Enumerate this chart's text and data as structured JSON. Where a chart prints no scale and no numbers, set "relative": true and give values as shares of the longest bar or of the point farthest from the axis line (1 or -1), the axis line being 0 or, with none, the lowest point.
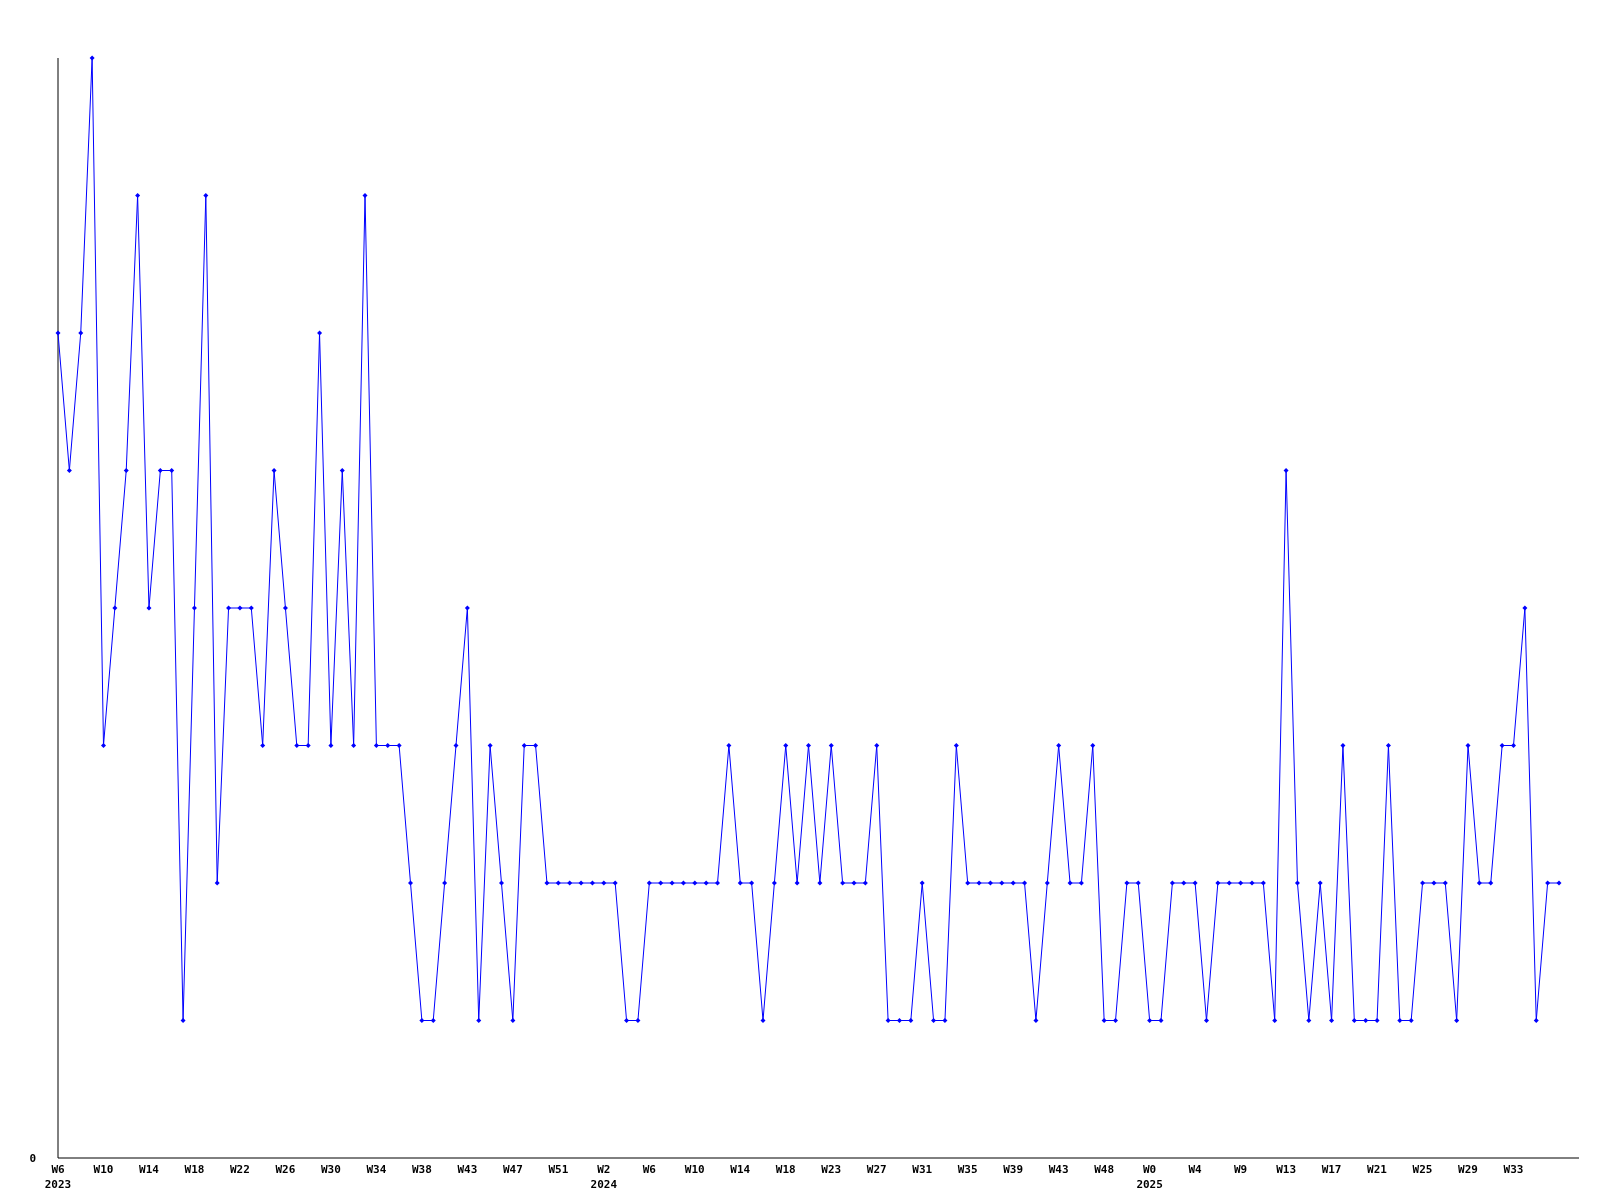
{
  "chart_data": {
    "type": "line",
    "relative": true,
    "marker": "diamond",
    "grid": false,
    "annotations": [
      "0"
    ],
    "categories": [
      "W6\n2023",
      null,
      null,
      null,
      "W10",
      null,
      null,
      null,
      "W14",
      null,
      null,
      null,
      "W18",
      null,
      null,
      null,
      "W22",
      null,
      null,
      null,
      "W26",
      null,
      null,
      null,
      "W30",
      null,
      null,
      null,
      "W34",
      null,
      null,
      null,
      "W38",
      null,
      null,
      null,
      "W43",
      null,
      null,
      null,
      "W47",
      null,
      null,
      null,
      "W51",
      null,
      null,
      null,
      "W2\n2024",
      null,
      null,
      null,
      "W6",
      null,
      null,
      null,
      "W10",
      null,
      null,
      null,
      "W14",
      null,
      null,
      null,
      "W18",
      null,
      null,
      null,
      "W23",
      null,
      null,
      null,
      "W27",
      null,
      null,
      null,
      "W31",
      null,
      null,
      null,
      "W35",
      null,
      null,
      null,
      "W39",
      null,
      null,
      null,
      "W43",
      null,
      null,
      null,
      "W48",
      null,
      null,
      null,
      "W0\n2025",
      null,
      null,
      null,
      "W4",
      null,
      null,
      null,
      "W9",
      null,
      null,
      null,
      "W13",
      null,
      null,
      null,
      "W17",
      null,
      null,
      null,
      "W21",
      null,
      null,
      null,
      "W25",
      null,
      null,
      null,
      "W29",
      null,
      null,
      null,
      "W33",
      null,
      null,
      null,
      null
    ],
    "series": [
      {
        "color": "#0000ff",
        "values": [
          0.75,
          0.625,
          0.75,
          1,
          0.375,
          0.5,
          0.625,
          0.875,
          0.5,
          0.625,
          0.625,
          0.125,
          0.5,
          0.875,
          0.25,
          0.5,
          0.5,
          0.5,
          0.375,
          0.625,
          0.5,
          0.375,
          0.375,
          0.75,
          0.375,
          0.625,
          0.375,
          0.875,
          0.375,
          0.375,
          0.375,
          0.25,
          0.125,
          0.125,
          0.25,
          0.375,
          0.5,
          0.125,
          0.375,
          0.25,
          0.125,
          0.375,
          0.375,
          0.25,
          0.25,
          0.25,
          0.25,
          0.25,
          0.25,
          0.25,
          0.125,
          0.125,
          0.25,
          0.25,
          0.25,
          0.25,
          0.25,
          0.25,
          0.25,
          0.375,
          0.25,
          0.25,
          0.125,
          0.25,
          0.375,
          0.25,
          0.375,
          0.25,
          0.375,
          0.25,
          0.25,
          0.25,
          0.375,
          0.125,
          0.125,
          0.125,
          0.25,
          0.125,
          0.125,
          0.375,
          0.25,
          0.25,
          0.25,
          0.25,
          0.25,
          0.25,
          0.125,
          0.25,
          0.375,
          0.25,
          0.25,
          0.375,
          0.125,
          0.125,
          0.25,
          0.25,
          0.125,
          0.125,
          0.25,
          0.25,
          0.25,
          0.125,
          0.25,
          0.25,
          0.25,
          0.25,
          0.25,
          0.125,
          0.625,
          0.25,
          0.125,
          0.25,
          0.125,
          0.375,
          0.125,
          0.125,
          0.125,
          0.375,
          0.125,
          0.125,
          0.25,
          0.25,
          0.25,
          0.125,
          0.375,
          0.25,
          0.25,
          0.375,
          0.375,
          0.5,
          0.125,
          0.25,
          0.25
        ]
      }
    ]
  }
}
